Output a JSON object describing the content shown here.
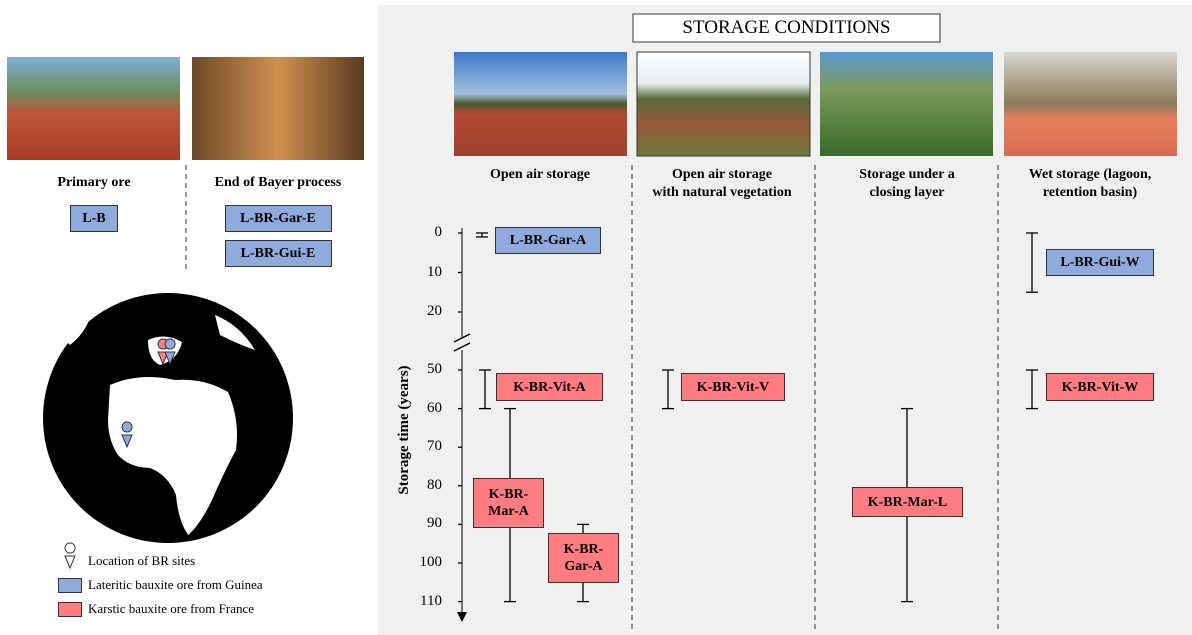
{
  "left_panel": {
    "columns": [
      {
        "label": "Primary ore",
        "samples": [
          {
            "name": "L-B",
            "color": "#8faadc"
          }
        ]
      },
      {
        "label": "End of Bayer process",
        "samples": [
          {
            "name": "L-BR-Gar-E",
            "color": "#8faadc"
          },
          {
            "name": "L-BR-Gui-E",
            "color": "#8faadc"
          }
        ]
      }
    ],
    "legend": [
      {
        "label": "Location of BR sites"
      },
      {
        "label": "Lateritic bauxite ore from Guinea",
        "color": "#8faadc"
      },
      {
        "label": "Karstic bauxite ore from France",
        "color": "#ff7c80"
      }
    ]
  },
  "right_panel": {
    "title": "STORAGE CONDITIONS",
    "columns": [
      "Open air storage",
      "Open air storage\nwith natural vegetation",
      "Storage under a\nclosing layer",
      "Wet storage (lagoon,\nretention basin)"
    ],
    "axis": {
      "label": "Storage time (years)",
      "ticks": [
        0,
        10,
        20,
        50,
        60,
        70,
        80,
        90,
        100,
        110
      ]
    },
    "samples": [
      {
        "name": "L-BR-Gar-A",
        "color": "#8faadc",
        "range": [
          0,
          1
        ]
      },
      {
        "name": "L-BR-Gui-W",
        "color": "#8faadc",
        "range": [
          0,
          15
        ]
      },
      {
        "name": "K-BR-Vit-A",
        "color": "#ff7c80",
        "range": [
          50,
          60
        ]
      },
      {
        "name": "K-BR-Vit-V",
        "color": "#ff7c80",
        "range": [
          50,
          60
        ]
      },
      {
        "name": "K-BR-Vit-W",
        "color": "#ff7c80",
        "range": [
          50,
          60
        ]
      },
      {
        "name": "K-BR-Mar-A",
        "color": "#ff7c80",
        "range": [
          60,
          110
        ]
      },
      {
        "name": "K-BR-Gar-A",
        "color": "#ff7c80",
        "range": [
          90,
          110
        ]
      },
      {
        "name": "K-BR-Mar-L",
        "color": "#ff7c80",
        "range": [
          60,
          110
        ]
      }
    ]
  }
}
